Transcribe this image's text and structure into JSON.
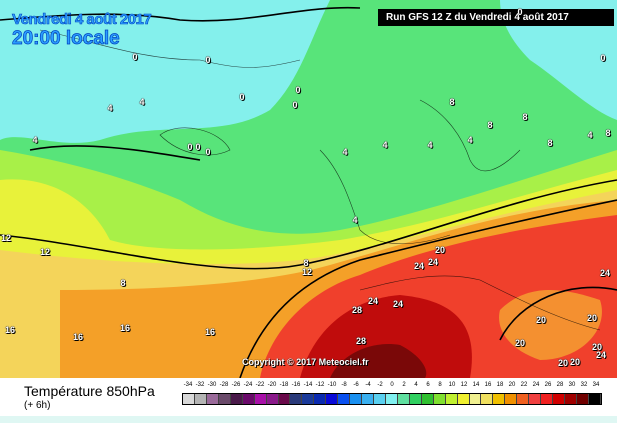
{
  "header": {
    "date": "Vendredi 4 août 2017",
    "time": "20:00 locale",
    "run": "Run GFS 12 Z du Vendredi 4 août 2017"
  },
  "copyright": "Copyright © 2017 Meteociel.fr",
  "legend": {
    "title": "Température 850hPa",
    "subtitle": "(+ 6h)",
    "ticks": [
      "-34",
      "-32",
      "-30",
      "-28",
      "-26",
      "-24",
      "-22",
      "-20",
      "-18",
      "-16",
      "-14",
      "-12",
      "-10",
      "-8",
      "-6",
      "-4",
      "-2",
      "0",
      "2",
      "4",
      "6",
      "8",
      "10",
      "12",
      "14",
      "16",
      "18",
      "20",
      "22",
      "24",
      "26",
      "28",
      "30",
      "32",
      "34"
    ],
    "colors": [
      "#d8d8d8",
      "#b4b4b4",
      "#9a6a9a",
      "#6a4a6a",
      "#4a1a4a",
      "#6a0a6a",
      "#a810a8",
      "#8a1a8a",
      "#6a0a4a",
      "#2a3a7a",
      "#1a3a9a",
      "#0a2ab0",
      "#0a0ad8",
      "#0a50f0",
      "#1a90f0",
      "#3ab0f0",
      "#5ad0f0",
      "#80f0f0",
      "#60e0a0",
      "#30d060",
      "#30c030",
      "#80e030",
      "#c0f030",
      "#f0f030",
      "#f0f090",
      "#f0e060",
      "#f0c000",
      "#f09000",
      "#f06020",
      "#f04040",
      "#f02020",
      "#d00000",
      "#a00000",
      "#700000",
      "#000000"
    ]
  },
  "contour_labels": [
    "0",
    "0",
    "0",
    "0",
    "0",
    "0",
    "0",
    "0",
    "0",
    "0",
    "4",
    "4",
    "4",
    "4",
    "4",
    "4",
    "4",
    "4",
    "4",
    "8",
    "8",
    "8",
    "8",
    "8",
    "8",
    "8",
    "12",
    "12",
    "12",
    "16",
    "16",
    "16",
    "16",
    "20",
    "20",
    "20",
    "20",
    "20",
    "20",
    "20",
    "24",
    "24",
    "24",
    "24",
    "24",
    "24",
    "28",
    "28"
  ]
}
